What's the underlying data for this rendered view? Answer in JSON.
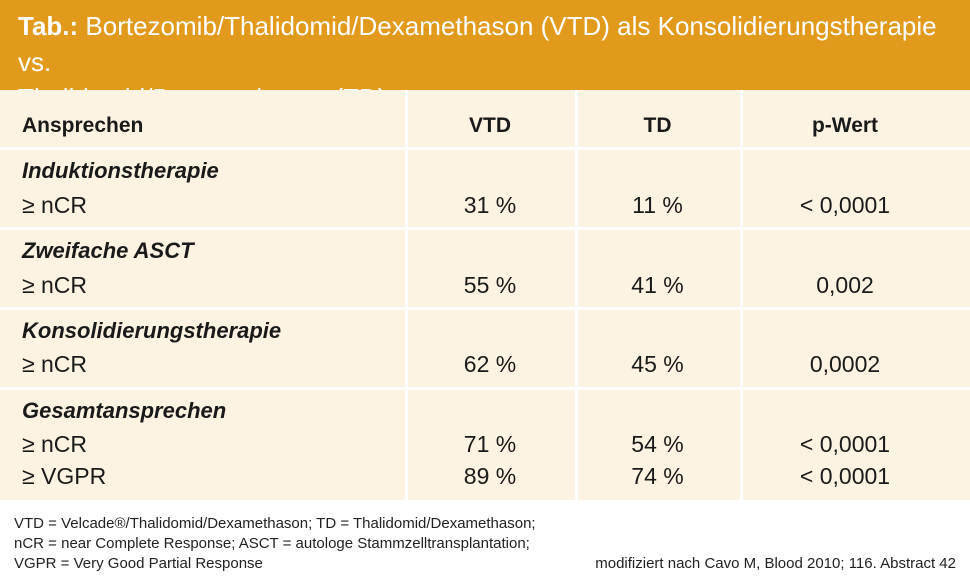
{
  "title": {
    "bold": "Tab.:",
    "line1": " Bortezomib/Thalidomid/Dexamethason (VTD) als Konsolidierungstherapie vs.",
    "line2": "Thalidomid/Dexamethason (TD)"
  },
  "table": {
    "headers": [
      "Ansprechen",
      "VTD",
      "TD",
      "p-Wert"
    ],
    "groups": [
      {
        "name": "Induktionstherapie",
        "rows": [
          {
            "label": "≥ nCR",
            "vtd": "31 %",
            "td": "11 %",
            "p": "< 0,0001"
          }
        ]
      },
      {
        "name": "Zweifache ASCT",
        "rows": [
          {
            "label": "≥ nCR",
            "vtd": "55 %",
            "td": "41 %",
            "p": "0,002"
          }
        ]
      },
      {
        "name": "Konsolidierungstherapie",
        "rows": [
          {
            "label": "≥ nCR",
            "vtd": "62 %",
            "td": "45 %",
            "p": "0,0002"
          }
        ]
      },
      {
        "name": "Gesamtansprechen",
        "rows": [
          {
            "label": "≥ nCR",
            "vtd": "71 %",
            "td": "54 %",
            "p": "< 0,0001"
          },
          {
            "label": "≥ VGPR",
            "vtd": "89 %",
            "td": "74 %",
            "p": "< 0,0001"
          }
        ]
      }
    ]
  },
  "footer": {
    "line1": "VTD = Velcade®/Thalidomid/Dexamethason; TD = Thalidomid/Dexamethason;",
    "line2": "nCR = near Complete Response; ASCT = autologe Stammzelltransplantation;",
    "line3": "VGPR = Very Good Partial Response",
    "source": "modifiziert nach Cavo M, Blood 2010; 116. Abstract 42"
  },
  "colors": {
    "title_bg": "#e29a1d",
    "table_bg": "#fdf3e3",
    "grid": "#ffffff"
  }
}
